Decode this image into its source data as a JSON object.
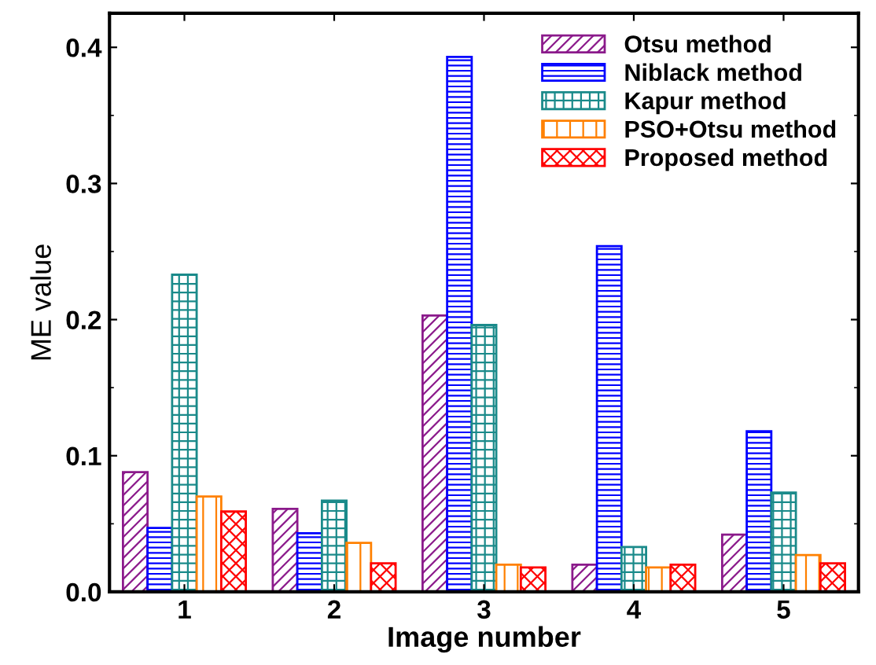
{
  "chart_data": {
    "type": "bar",
    "xlabel": "Image number",
    "ylabel": "ME value",
    "categories": [
      "1",
      "2",
      "3",
      "4",
      "5"
    ],
    "series": [
      {
        "name": "Otsu method",
        "color": "#8b1a8b",
        "values": [
          0.088,
          0.061,
          0.203,
          0.02,
          0.042
        ]
      },
      {
        "name": "Niblack method",
        "color": "#0000ff",
        "values": [
          0.047,
          0.043,
          0.393,
          0.254,
          0.118
        ]
      },
      {
        "name": "Kapur method",
        "color": "#1a8a8a",
        "values": [
          0.233,
          0.067,
          0.196,
          0.033,
          0.073
        ]
      },
      {
        "name": "PSO+Otsu method",
        "color": "#ff8000",
        "values": [
          0.07,
          0.036,
          0.02,
          0.018,
          0.027
        ]
      },
      {
        "name": "Proposed method",
        "color": "#ff0000",
        "values": [
          0.059,
          0.021,
          0.018,
          0.02,
          0.021
        ]
      }
    ],
    "ylim": [
      0,
      0.425
    ],
    "yticks": [
      {
        "value": 0,
        "label": "0.0"
      },
      0.1,
      0.2,
      0.3,
      0.4
    ],
    "legend": "top right",
    "grid": false
  }
}
